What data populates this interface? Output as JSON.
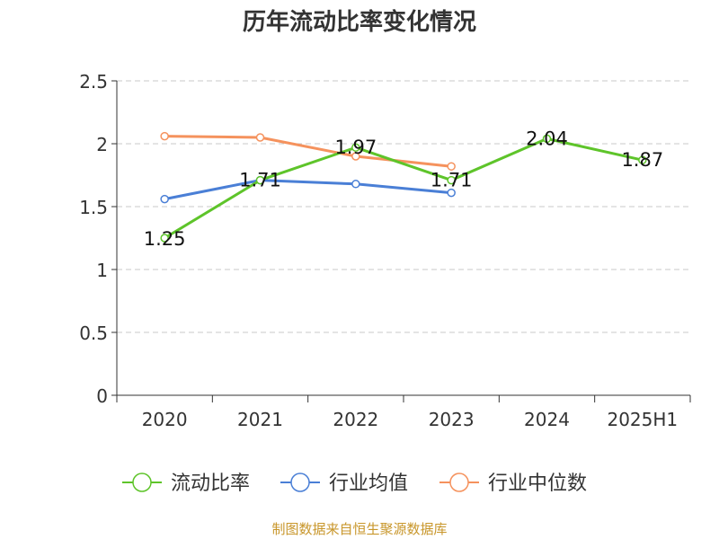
{
  "title": "历年流动比率变化情况",
  "footer": "制图数据来自恒生聚源数据库",
  "chart_data": {
    "type": "line",
    "title": "历年流动比率变化情况",
    "categories": [
      "2020",
      "2021",
      "2022",
      "2023",
      "2024",
      "2025H1"
    ],
    "ylim": [
      0,
      2.5
    ],
    "yticks": [
      "0",
      "0.5",
      "1",
      "1.5",
      "2",
      "2.5"
    ],
    "grid": true,
    "legend_position": "bottom",
    "series": [
      {
        "name": "流动比率",
        "color": "#5ec42a",
        "values": [
          1.25,
          1.71,
          1.97,
          1.71,
          2.04,
          1.87
        ],
        "labels": [
          "1.25",
          "1.71",
          "1.97",
          "1.71",
          "2.04",
          "1.87"
        ]
      },
      {
        "name": "行业均值",
        "color": "#4a7fd6",
        "values": [
          1.56,
          1.71,
          1.68,
          1.61,
          null,
          null
        ]
      },
      {
        "name": "行业中位数",
        "color": "#f5925d",
        "values": [
          2.06,
          2.05,
          1.9,
          1.82,
          null,
          null
        ]
      }
    ]
  }
}
